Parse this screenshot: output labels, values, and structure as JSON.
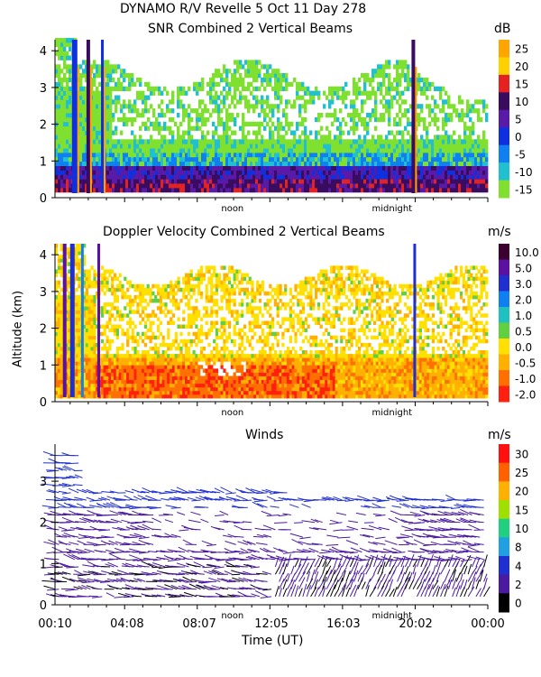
{
  "header": {
    "line1": "DYNAMO R/V Revelle    5 Oct 11 Day 278"
  },
  "shared": {
    "ylabel": "Altitude (km)",
    "xlabel": "Time (UT)",
    "time_ticks": [
      "00:10",
      "04:08",
      "08:07",
      "12:05",
      "16:03",
      "20:02",
      "00:00"
    ],
    "markers": [
      "noon",
      "midnight"
    ]
  },
  "chart_data": [
    {
      "type": "heatmap",
      "title": "SNR Combined 2 Vertical Beams",
      "units": "dB",
      "ylim": [
        0,
        4.3
      ],
      "yticks": [
        0,
        1,
        2,
        3,
        4
      ],
      "colorbar": {
        "labels": [
          "25",
          "20",
          "15",
          "10",
          "5",
          "0",
          "-5",
          "-10",
          "-15"
        ],
        "colors": [
          "#ffa500",
          "#ffd000",
          "#e52222",
          "#3a0c60",
          "#5a1aa8",
          "#1030e0",
          "#1080f0",
          "#20c0d0",
          "#80e030"
        ]
      },
      "cloud_layer_km": [
        0.2,
        3.4
      ]
    },
    {
      "type": "heatmap",
      "title": "Doppler Velocity Combined 2 Vertical Beams",
      "units": "m/s",
      "ylim": [
        0,
        4.3
      ],
      "yticks": [
        0,
        1,
        2,
        3,
        4
      ],
      "colorbar": {
        "labels": [
          "10.0",
          "5.0",
          "3.0",
          "2.0",
          "1.0",
          "0.5",
          "0.0",
          "-0.5",
          "-1.0",
          "-2.0"
        ],
        "colors": [
          "#3a0030",
          "#5a10a0",
          "#2030d0",
          "#1080f0",
          "#20c0c0",
          "#60d040",
          "#ffe000",
          "#ffb000",
          "#ff7000",
          "#ff2010"
        ]
      }
    },
    {
      "type": "scatter",
      "title": "Winds",
      "units": "m/s",
      "ylim": [
        0,
        3.9
      ],
      "yticks": [
        0,
        1,
        2,
        3
      ],
      "colorbar": {
        "labels": [
          "30",
          "25",
          "20",
          "15",
          "10",
          "8",
          "4",
          "2",
          "0"
        ],
        "colors": [
          "#ff1010",
          "#ff6000",
          "#ffb000",
          "#a0e000",
          "#20d080",
          "#20a0e0",
          "#2030d0",
          "#4a1aa0",
          "#000000"
        ]
      }
    }
  ]
}
